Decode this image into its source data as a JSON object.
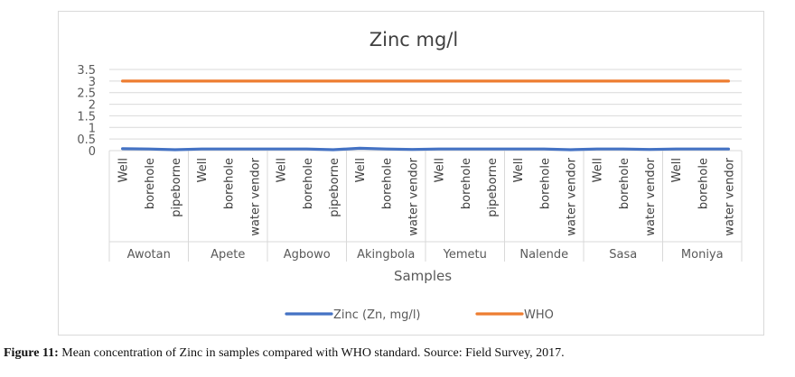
{
  "chart_data": {
    "type": "line",
    "title": "Zinc mg/l",
    "xlabel": "Samples",
    "ylabel": "",
    "ylim": [
      0,
      3.5
    ],
    "yticks": [
      "0",
      "0.5",
      "1",
      "1.5",
      "2",
      "2.5",
      "3",
      "3.5"
    ],
    "grid": true,
    "legend_position": "bottom",
    "groups": [
      {
        "name": "Awotan",
        "samples": [
          "Well",
          "borehole",
          "pipeborne"
        ]
      },
      {
        "name": "Apete",
        "samples": [
          "Well",
          "borehole",
          "water vendor"
        ]
      },
      {
        "name": "Agbowo",
        "samples": [
          "Well",
          "borehole",
          "pipeborne"
        ]
      },
      {
        "name": "Akingbola",
        "samples": [
          "Well",
          "borehole",
          "water vendor"
        ]
      },
      {
        "name": "Yemetu",
        "samples": [
          "Well",
          "borehole",
          "pipeborne"
        ]
      },
      {
        "name": "Nalende",
        "samples": [
          "Well",
          "borehole",
          "water vendor"
        ]
      },
      {
        "name": "Sasa",
        "samples": [
          "Well",
          "borehole",
          "water vendor"
        ]
      },
      {
        "name": "Moniya",
        "samples": [
          "Well",
          "borehole",
          "water vendor"
        ]
      }
    ],
    "series": [
      {
        "name": "Zinc (Zn, mg/l)",
        "color": "#4472c4",
        "values": [
          0.08,
          0.07,
          0.04,
          0.07,
          0.07,
          0.07,
          0.07,
          0.07,
          0.04,
          0.1,
          0.07,
          0.05,
          0.07,
          0.07,
          0.07,
          0.07,
          0.07,
          0.04,
          0.07,
          0.07,
          0.05,
          0.07,
          0.07,
          0.07
        ]
      },
      {
        "name": "WHO",
        "color": "#ed7d31",
        "values": [
          3,
          3,
          3,
          3,
          3,
          3,
          3,
          3,
          3,
          3,
          3,
          3,
          3,
          3,
          3,
          3,
          3,
          3,
          3,
          3,
          3,
          3,
          3,
          3
        ]
      }
    ]
  },
  "caption": {
    "label": "Figure 11:",
    "text": " Mean concentration of Zinc in samples compared with WHO standard. Source: Field Survey, 2017."
  }
}
